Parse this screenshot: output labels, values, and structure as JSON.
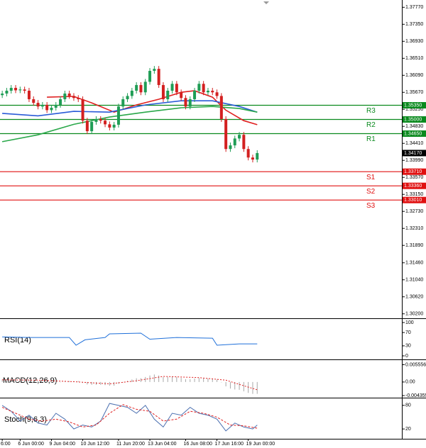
{
  "chart_data": [
    {
      "type": "candlestick",
      "categories": [
        "6:00",
        null,
        null,
        null,
        "6 Jun 00:00",
        null,
        null,
        null,
        null,
        null,
        null,
        "9 Jun 04:00",
        null,
        null,
        null,
        null,
        null,
        null,
        "10 Jun 12:00",
        null,
        null,
        null,
        null,
        null,
        null,
        null,
        "11 Jun 20:00",
        null,
        null,
        null,
        null,
        null,
        null,
        "13 Jun 04:00",
        null,
        null,
        null,
        null,
        null,
        null,
        null,
        "16 Jun 08:00",
        null,
        null,
        null,
        null,
        null,
        null,
        "17 Jun 16:00",
        null,
        null,
        null,
        null,
        null,
        null,
        "19 Jun 00:00",
        null,
        null
      ],
      "open": [
        1.356,
        1.3564,
        1.3571,
        1.3578,
        1.3572,
        1.3574,
        1.3571,
        1.355,
        1.3541,
        1.3532,
        1.3536,
        1.3523,
        1.3529,
        1.3536,
        1.355,
        1.3564,
        1.3558,
        1.3553,
        1.355,
        1.3497,
        1.3471,
        1.3494,
        1.3501,
        1.3497,
        1.3488,
        1.348,
        1.3487,
        1.3532,
        1.355,
        1.3558,
        1.3571,
        1.3585,
        1.3567,
        1.3593,
        1.362,
        1.3625,
        1.3585,
        1.355,
        1.3571,
        1.3588,
        1.3567,
        1.3553,
        1.3532,
        1.355,
        1.3571,
        1.3588,
        1.3567,
        1.3571,
        1.3567,
        1.3558,
        1.3501,
        1.3427,
        1.3436,
        1.3453,
        1.3462,
        1.3427,
        1.3406,
        1.3401
      ],
      "high": [
        1.3571,
        1.3578,
        1.3585,
        1.3585,
        1.3581,
        1.3581,
        1.3578,
        1.3557,
        1.3548,
        1.3543,
        1.3543,
        1.3536,
        1.3543,
        1.3557,
        1.3571,
        1.3571,
        1.3565,
        1.356,
        1.3557,
        1.3504,
        1.3501,
        1.3508,
        1.3508,
        1.3504,
        1.3495,
        1.3494,
        1.3539,
        1.3557,
        1.3565,
        1.3578,
        1.3592,
        1.3592,
        1.36,
        1.3627,
        1.3632,
        1.3632,
        1.3592,
        1.3578,
        1.3595,
        1.3595,
        1.3574,
        1.356,
        1.3557,
        1.3578,
        1.3595,
        1.3595,
        1.3578,
        1.3578,
        1.3574,
        1.3565,
        1.3508,
        1.3443,
        1.346,
        1.3469,
        1.3469,
        1.3434,
        1.3413,
        1.3424
      ],
      "low": [
        1.3553,
        1.3557,
        1.3564,
        1.3565,
        1.3565,
        1.3564,
        1.3543,
        1.3534,
        1.3525,
        1.3525,
        1.3516,
        1.3516,
        1.3522,
        1.3529,
        1.3543,
        1.3551,
        1.3546,
        1.3543,
        1.349,
        1.3464,
        1.3464,
        1.3487,
        1.349,
        1.3481,
        1.3473,
        1.3473,
        1.348,
        1.3525,
        1.3543,
        1.3551,
        1.3564,
        1.356,
        1.356,
        1.3586,
        1.3613,
        1.3578,
        1.3543,
        1.3543,
        1.3564,
        1.356,
        1.3546,
        1.3525,
        1.3525,
        1.3543,
        1.3564,
        1.356,
        1.356,
        1.356,
        1.3551,
        1.3494,
        1.342,
        1.342,
        1.3429,
        1.3446,
        1.342,
        1.3399,
        1.3394,
        1.3394
      ],
      "close": [
        1.3564,
        1.3571,
        1.3578,
        1.3572,
        1.3574,
        1.3571,
        1.355,
        1.3541,
        1.3532,
        1.3536,
        1.3523,
        1.3529,
        1.3536,
        1.355,
        1.3564,
        1.3558,
        1.3553,
        1.355,
        1.3497,
        1.3471,
        1.3494,
        1.3501,
        1.3497,
        1.3488,
        1.348,
        1.3487,
        1.3532,
        1.355,
        1.3558,
        1.3571,
        1.3585,
        1.3567,
        1.3593,
        1.362,
        1.3625,
        1.3585,
        1.355,
        1.3571,
        1.3588,
        1.3567,
        1.3553,
        1.3532,
        1.355,
        1.3571,
        1.3588,
        1.3567,
        1.3571,
        1.3567,
        1.3558,
        1.3501,
        1.3427,
        1.3436,
        1.3453,
        1.3462,
        1.3427,
        1.3406,
        1.3401,
        1.3417
      ],
      "up_color": "#1f9d55",
      "down_color": "#d32020",
      "ylim": [
        1.3009,
        1.3795
      ],
      "yticks": [
        {
          "value": 1.3777,
          "label": "1.37770"
        },
        {
          "value": 1.3735,
          "label": "1.37350"
        },
        {
          "value": 1.3693,
          "label": "1.36930"
        },
        {
          "value": 1.3651,
          "label": "1.36510"
        },
        {
          "value": 1.3609,
          "label": "1.36090"
        },
        {
          "value": 1.3567,
          "label": "1.35670"
        },
        {
          "value": 1.3525,
          "label": "1.35250"
        },
        {
          "value": 1.3483,
          "label": "1.34830"
        },
        {
          "value": 1.3441,
          "label": "1.34410"
        },
        {
          "value": 1.3399,
          "label": "1.33990"
        },
        {
          "value": 1.3357,
          "label": "1.33570"
        },
        {
          "value": 1.3315,
          "label": "1.33150"
        },
        {
          "value": 1.3273,
          "label": "1.32730"
        },
        {
          "value": 1.3231,
          "label": "1.32310"
        },
        {
          "value": 1.3189,
          "label": "1.31890"
        },
        {
          "value": 1.3146,
          "label": "1.31460"
        },
        {
          "value": 1.3104,
          "label": "1.31040"
        },
        {
          "value": 1.3062,
          "label": "1.30620"
        },
        {
          "value": 1.302,
          "label": "1.30200"
        }
      ],
      "lines": [
        {
          "color": "#e02020",
          "x": [
            10,
            16,
            20,
            25,
            30,
            35,
            40,
            43,
            47,
            50,
            54,
            57
          ],
          "values": [
            1.3555,
            1.3557,
            1.3541,
            1.3518,
            1.3536,
            1.355,
            1.3567,
            1.3571,
            1.3555,
            1.3523,
            1.3497,
            1.3487
          ]
        },
        {
          "color": "#2a5bd7",
          "x": [
            0,
            8,
            16,
            24,
            32,
            40,
            47,
            53,
            57
          ],
          "values": [
            1.3515,
            1.3509,
            1.352,
            1.3518,
            1.3536,
            1.3546,
            1.3546,
            1.3532,
            1.3518
          ]
        },
        {
          "color": "#2aa84a",
          "x": [
            0,
            8,
            16,
            24,
            32,
            40,
            47,
            53,
            57
          ],
          "values": [
            1.3445,
            1.3462,
            1.3488,
            1.3506,
            1.3518,
            1.3529,
            1.3532,
            1.3527,
            1.3518
          ]
        }
      ],
      "levels": [
        {
          "name": "R3",
          "value": 1.3535,
          "label": "1.35350",
          "color": "#0a8a1e"
        },
        {
          "name": "R2",
          "value": 1.35,
          "label": "1.35000",
          "color": "#0a8a1e"
        },
        {
          "name": "R1",
          "value": 1.3465,
          "label": "1.34650",
          "color": "#0a8a1e"
        },
        {
          "name": "S1",
          "value": 1.3371,
          "label": "1.33710",
          "color": "#e01010"
        },
        {
          "name": "S2",
          "value": 1.3336,
          "label": "1.33360",
          "color": "#e01010"
        },
        {
          "name": "S3",
          "value": 1.3301,
          "label": "1.33010",
          "color": "#e01010"
        }
      ],
      "last_price": {
        "value": 1.3417,
        "label": "1.34170"
      }
    },
    {
      "type": "line",
      "title": "RSI(14)",
      "ylim": [
        -8.5,
        108.5
      ],
      "yticks": [
        100,
        70,
        30,
        0
      ],
      "color": "#1e6fd9",
      "x": [
        0,
        6,
        15,
        16.5,
        18.5,
        23,
        24,
        31,
        33,
        39,
        47,
        48,
        53,
        57
      ],
      "values": [
        57,
        55,
        55,
        32,
        48,
        55,
        66,
        68,
        50,
        55,
        53,
        32,
        36,
        36
      ]
    },
    {
      "type": "macd",
      "title": "MACD(12,26,9)",
      "ylim": [
        -0.0048,
        0.0068
      ],
      "yticks": [
        0.005556,
        {
          "value": 0,
          "label": "0.00"
        },
        -0.004355
      ],
      "histogram": {
        "color": "#a8a8a8",
        "values": [
          0.0008,
          0.0009,
          0.001,
          0.001,
          0.001,
          0.0009,
          0.0006,
          0.0004,
          0.0002,
          0.0001,
          -0.0001,
          -0.0002,
          -0.0002,
          0,
          0.0002,
          0.0003,
          0.0003,
          0.0003,
          -0.0003,
          -0.0008,
          -0.0009,
          -0.0009,
          -0.0009,
          -0.001,
          -0.0012,
          -0.0012,
          -0.0006,
          0,
          0.0004,
          0.0008,
          0.0012,
          0.0012,
          0.0016,
          0.0021,
          0.0024,
          0.0021,
          0.0016,
          0.0016,
          0.0018,
          0.0016,
          0.0013,
          0.0009,
          0.0009,
          0.0011,
          0.0013,
          0.0012,
          0.0011,
          0.001,
          0.0008,
          -0.0001,
          -0.0014,
          -0.0021,
          -0.0024,
          -0.0025,
          -0.003,
          -0.0035,
          -0.0038,
          -0.0038
        ]
      },
      "signal": {
        "color": "#e02020",
        "x": [
          0,
          8,
          16,
          24,
          30,
          36,
          44,
          50,
          54,
          57
        ],
        "values": [
          0.0007,
          0.0006,
          0.0001,
          -0.0006,
          0.0004,
          0.0018,
          0.0014,
          0.0006,
          -0.0012,
          -0.0025
        ]
      }
    },
    {
      "type": "stoch",
      "title": "Stoch(9,6,3)",
      "ylim": [
        -5,
        96
      ],
      "yticks": [
        80,
        20
      ],
      "series": [
        {
          "color": "#4a6fb0",
          "x": [
            0,
            2,
            4,
            6,
            8,
            10,
            12,
            14,
            16,
            18,
            20,
            22,
            24,
            26,
            28,
            30,
            32,
            34,
            36,
            38,
            40,
            42,
            44,
            46,
            48,
            50,
            52,
            54,
            56,
            57
          ],
          "values": [
            80,
            65,
            40,
            55,
            35,
            30,
            60,
            45,
            20,
            30,
            25,
            40,
            85,
            80,
            75,
            60,
            80,
            45,
            25,
            60,
            55,
            75,
            60,
            55,
            45,
            15,
            35,
            25,
            20,
            30
          ]
        },
        {
          "color": "#e02020",
          "dashed": true,
          "x": [
            0,
            3,
            6,
            9,
            12,
            15,
            18,
            21,
            24,
            27,
            30,
            33,
            36,
            39,
            42,
            45,
            48,
            51,
            54,
            57
          ],
          "values": [
            75,
            60,
            45,
            40,
            45,
            38,
            25,
            30,
            60,
            82,
            70,
            65,
            40,
            45,
            65,
            60,
            50,
            30,
            28,
            22
          ]
        }
      ]
    }
  ]
}
